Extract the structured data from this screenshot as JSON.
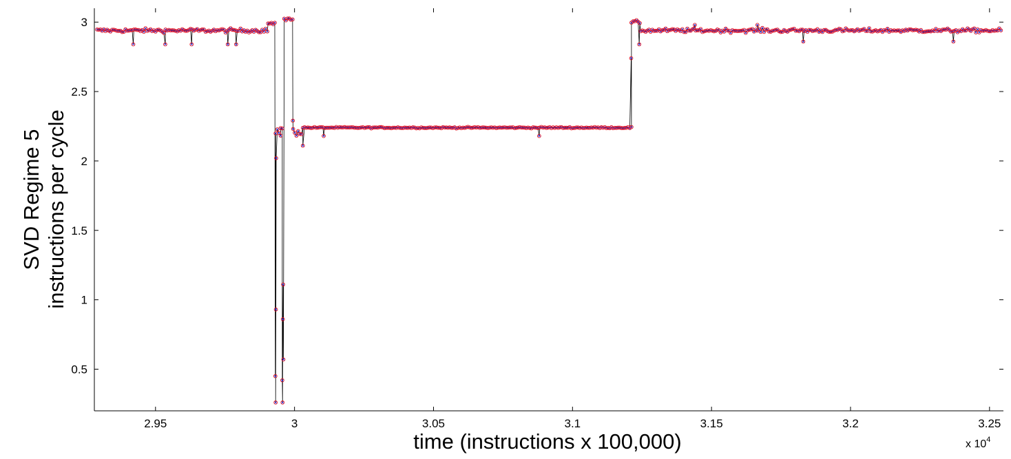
{
  "chart_data": {
    "type": "line",
    "title": "",
    "xlabel": "time (instructions x 100,000)",
    "ylabel": [
      "SVD Regime 5",
      "instructions per cycle"
    ],
    "x_exponent_label": "x 10",
    "x_exponent_power": "4",
    "xlim": [
      2.928,
      3.255
    ],
    "ylim": [
      0.2,
      3.1
    ],
    "x_ticks": [
      2.95,
      3.0,
      3.05,
      3.1,
      3.15,
      3.2,
      3.25
    ],
    "x_tick_labels": [
      "2.95",
      "3",
      "3.05",
      "3.1",
      "3.15",
      "3.2",
      "3.25"
    ],
    "y_ticks": [
      0.5,
      1.0,
      1.5,
      2.0,
      2.5,
      3.0
    ],
    "y_tick_labels": [
      "0.5",
      "1",
      "1.5",
      "2",
      "2.5",
      "3"
    ],
    "grid": false,
    "legend": "none",
    "colors": {
      "line": "#000000",
      "marker_x": "#1f2bd6",
      "marker_o": "#e8121f"
    },
    "series": [
      {
        "marker": "o-line",
        "segments": [
          {
            "x_start": 2.929,
            "x_end": 2.9905,
            "level": 2.94,
            "noise": 0.012
          },
          {
            "x_start": 2.9905,
            "x_end": 2.993,
            "level": 2.99,
            "noise": 0.01
          },
          {
            "x_start": 2.9932,
            "x_end": 2.995,
            "level": 2.19,
            "noise": 0.03
          },
          {
            "x_start": 2.995,
            "x_end": 2.996,
            "level": 2.25,
            "noise": 0.02
          },
          {
            "x_start": 2.9963,
            "x_end": 2.9993,
            "level": 3.02,
            "noise": 0.01
          },
          {
            "x_start": 2.9995,
            "x_end": 3.003,
            "level": 2.21,
            "noise": 0.025
          },
          {
            "x_start": 3.003,
            "x_end": 3.1212,
            "level": 2.24,
            "noise": 0.004
          },
          {
            "x_start": 3.1212,
            "x_end": 3.1245,
            "level": 3.0,
            "noise": 0.01
          },
          {
            "x_start": 3.1245,
            "x_end": 3.2545,
            "level": 2.94,
            "noise": 0.012
          }
        ],
        "spikes": [
          {
            "x": 2.9932,
            "y": 0.26
          },
          {
            "x": 2.9931,
            "y": 0.45
          },
          {
            "x": 2.9933,
            "y": 0.93
          },
          {
            "x": 2.9934,
            "y": 2.02
          },
          {
            "x": 2.9957,
            "y": 0.26
          },
          {
            "x": 2.9956,
            "y": 0.42
          },
          {
            "x": 2.9958,
            "y": 0.86
          },
          {
            "x": 2.9959,
            "y": 1.11
          },
          {
            "x": 2.996,
            "y": 0.57
          },
          {
            "x": 2.9994,
            "y": 2.29
          },
          {
            "x": 3.1211,
            "y": 2.74
          },
          {
            "x": 3.003,
            "y": 2.11
          },
          {
            "x": 3.0105,
            "y": 2.18
          },
          {
            "x": 3.088,
            "y": 2.18
          },
          {
            "x": 2.942,
            "y": 2.84
          },
          {
            "x": 2.9535,
            "y": 2.84
          },
          {
            "x": 2.963,
            "y": 2.84
          },
          {
            "x": 2.976,
            "y": 2.84
          },
          {
            "x": 2.979,
            "y": 2.84
          },
          {
            "x": 3.124,
            "y": 2.84
          },
          {
            "x": 3.144,
            "y": 2.98
          },
          {
            "x": 3.1665,
            "y": 2.98
          },
          {
            "x": 3.183,
            "y": 2.86
          },
          {
            "x": 3.237,
            "y": 2.86
          }
        ]
      }
    ]
  }
}
